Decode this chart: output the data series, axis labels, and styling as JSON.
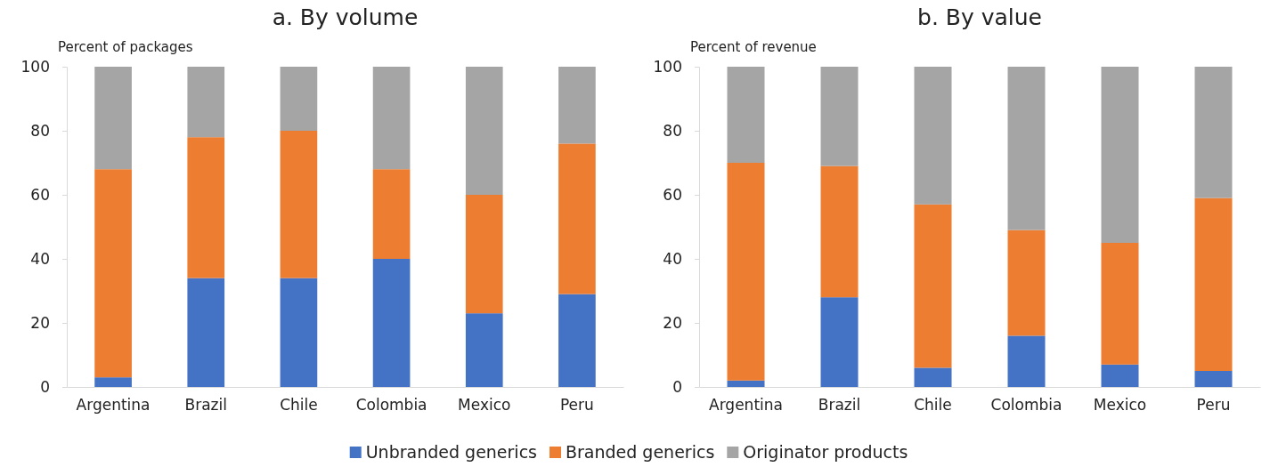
{
  "chart_data": [
    {
      "type": "bar",
      "title": "a.   By volume",
      "ylabel": "Percent of packages",
      "stacked": true,
      "categories": [
        "Argentina",
        "Brazil",
        "Chile",
        "Colombia",
        "Mexico",
        "Peru"
      ],
      "ylim": [
        0,
        100
      ],
      "yticks": [
        0,
        20,
        40,
        60,
        80,
        100
      ],
      "legend": false,
      "series": [
        {
          "color": "#4472c4",
          "values": [
            3,
            34,
            34,
            40,
            23,
            29
          ]
        },
        {
          "color": "#ed7d31",
          "values": [
            65,
            44,
            46,
            28,
            37,
            47
          ]
        },
        {
          "color": "#a5a5a5",
          "values": [
            32,
            22,
            20,
            32,
            40,
            24
          ]
        }
      ]
    },
    {
      "type": "bar",
      "title": "b.   By value",
      "ylabel": "Percent of revenue",
      "stacked": true,
      "categories": [
        "Argentina",
        "Brazil",
        "Chile",
        "Colombia",
        "Mexico",
        "Peru"
      ],
      "ylim": [
        0,
        100
      ],
      "yticks": [
        0,
        20,
        40,
        60,
        80,
        100
      ],
      "legend": "bottom",
      "series": [
        {
          "name": "Unbranded generics",
          "color": "#4472c4",
          "values": [
            2,
            28,
            6,
            16,
            7,
            5
          ]
        },
        {
          "name": "Branded generics",
          "color": "#ed7d31",
          "values": [
            68,
            41,
            51,
            33,
            38,
            54
          ]
        },
        {
          "name": "Originator products",
          "color": "#a5a5a5",
          "values": [
            30,
            31,
            43,
            51,
            55,
            41
          ]
        }
      ]
    }
  ]
}
